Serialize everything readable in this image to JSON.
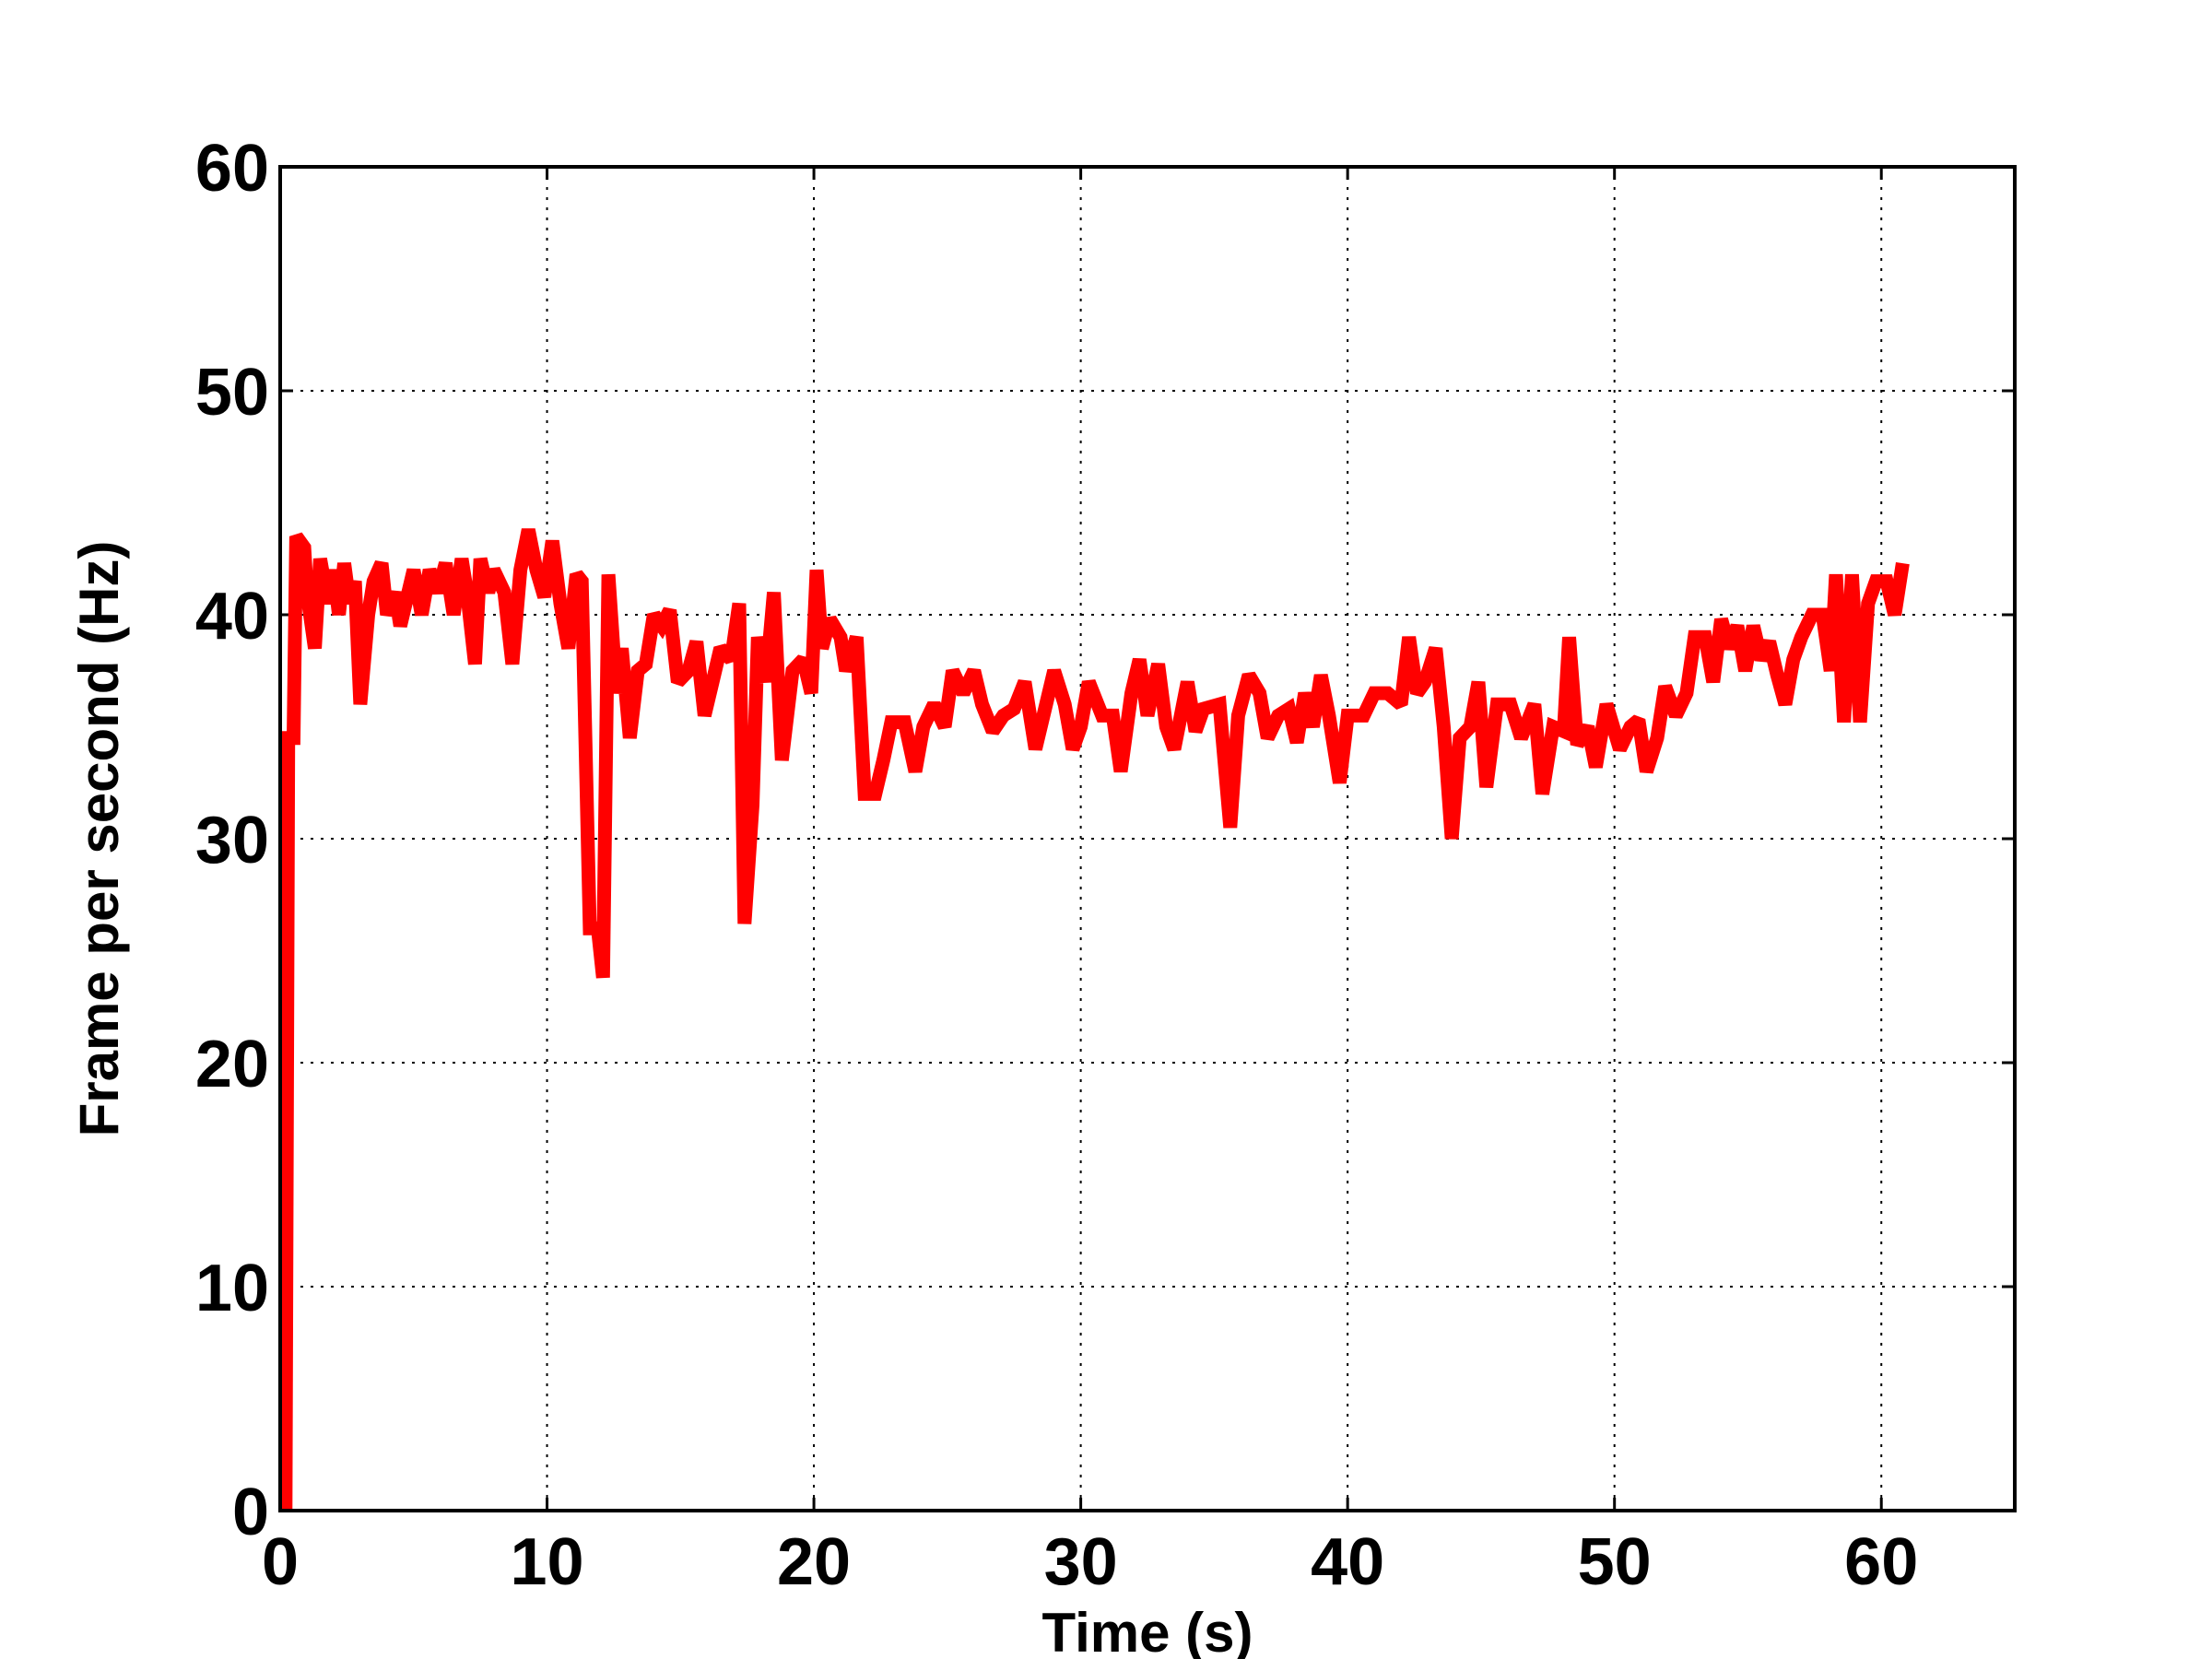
{
  "chart_data": {
    "type": "line",
    "xlabel": "Time (s)",
    "ylabel": "Frame per second (Hz)",
    "xlim": [
      0,
      65
    ],
    "ylim": [
      0,
      60
    ],
    "xticks": [
      0,
      10,
      20,
      30,
      40,
      50,
      60
    ],
    "yticks": [
      0,
      10,
      20,
      30,
      40,
      50,
      60
    ],
    "grid": true,
    "series": [
      {
        "color": "#ff0000",
        "x": [
          0.2,
          0.3,
          0.5,
          0.6,
          0.9,
          1.0,
          1.3,
          1.5,
          1.8,
          2.0,
          2.2,
          2.4,
          2.6,
          2.8,
          3.0,
          3.3,
          3.5,
          3.8,
          4.0,
          4.3,
          4.5,
          4.8,
          5.0,
          5.3,
          5.6,
          5.9,
          6.2,
          6.5,
          6.8,
          7.0,
          7.3,
          7.5,
          7.8,
          8.0,
          8.4,
          8.7,
          9.0,
          9.3,
          9.6,
          9.9,
          10.2,
          10.5,
          10.8,
          11.1,
          11.3,
          11.6,
          11.9,
          12.1,
          12.3,
          12.6,
          12.8,
          13.1,
          13.4,
          13.7,
          14.0,
          14.3,
          14.6,
          14.9,
          15.3,
          15.6,
          15.9,
          16.2,
          16.5,
          16.9,
          17.2,
          17.4,
          17.7,
          17.9,
          18.2,
          18.5,
          18.8,
          19.2,
          19.6,
          19.9,
          20.1,
          20.3,
          20.6,
          21.0,
          21.2,
          21.6,
          21.9,
          22.3,
          22.6,
          22.9,
          23.4,
          23.8,
          24.1,
          24.5,
          24.9,
          25.2,
          25.6,
          26.0,
          26.3,
          26.7,
          27.1,
          27.5,
          27.9,
          28.3,
          28.7,
          29.0,
          29.4,
          29.7,
          30.0,
          30.3,
          30.8,
          31.2,
          31.5,
          31.9,
          32.2,
          32.5,
          32.9,
          33.2,
          33.5,
          34.0,
          34.3,
          34.6,
          35.2,
          35.6,
          35.9,
          36.3,
          36.7,
          37.0,
          37.4,
          37.8,
          38.1,
          38.4,
          38.7,
          39.0,
          39.3,
          39.7,
          40.0,
          40.6,
          41.0,
          41.5,
          42.0,
          42.3,
          42.6,
          42.9,
          43.3,
          43.6,
          43.9,
          44.2,
          44.6,
          44.9,
          45.2,
          45.6,
          46.1,
          46.5,
          47.0,
          47.3,
          47.7,
          48.1,
          48.3,
          48.6,
          49.0,
          49.3,
          49.7,
          50.2,
          50.6,
          50.9,
          51.2,
          51.6,
          51.9,
          52.3,
          52.7,
          53.0,
          53.4,
          53.7,
          54.0,
          54.3,
          54.6,
          54.9,
          55.2,
          55.5,
          55.8,
          56.1,
          56.4,
          56.7,
          57.0,
          57.4,
          57.8,
          58.1,
          58.3,
          58.6,
          58.9,
          59.2,
          59.5,
          59.8,
          60.2,
          60.5,
          60.8
        ],
        "values": [
          0,
          34.5,
          34.5,
          43.5,
          43,
          41,
          38.5,
          42.5,
          40.5,
          42,
          40,
          42.3,
          40.5,
          41.5,
          36,
          40,
          41.5,
          42.3,
          40,
          41,
          39.5,
          41,
          42,
          40,
          42,
          41,
          42.3,
          40,
          42.5,
          41,
          37.8,
          42.5,
          41,
          42,
          41,
          37.8,
          42,
          43.8,
          42,
          40.8,
          43.3,
          40.5,
          38.5,
          41.8,
          41.5,
          26,
          26,
          23.8,
          41.8,
          36.5,
          38.5,
          34.5,
          37.5,
          37.8,
          40,
          39.5,
          40.2,
          37,
          37.5,
          38.8,
          35.5,
          37,
          38.5,
          38,
          40.5,
          26.2,
          31.5,
          39,
          37,
          41,
          33.5,
          37.5,
          38,
          36.5,
          42,
          38.5,
          39.8,
          39,
          37.5,
          39,
          32,
          32,
          33.5,
          35.2,
          35.2,
          33,
          35,
          36,
          35,
          37.5,
          36.5,
          37.5,
          36,
          34.8,
          35.5,
          35.8,
          37,
          34,
          36,
          37.5,
          36,
          34,
          35,
          37,
          35.5,
          35.5,
          33,
          36.5,
          38,
          35.5,
          37.8,
          35,
          34,
          37,
          34.8,
          35.8,
          36,
          30.5,
          35.5,
          37.3,
          36.5,
          34.5,
          35.5,
          35.8,
          34.3,
          36.5,
          35,
          37.3,
          35.5,
          32.5,
          35.5,
          35.5,
          36.5,
          36.5,
          36,
          39,
          36.5,
          37,
          38.5,
          35,
          30,
          34.5,
          35,
          37,
          32.3,
          36,
          36,
          34.5,
          36,
          32,
          35,
          34.8,
          39,
          34.2,
          35,
          33.2,
          36,
          34,
          35,
          35.3,
          33,
          34.5,
          36.8,
          35.5,
          36.5,
          39,
          39,
          37,
          39.8,
          38.5,
          39.5,
          37.5,
          39.5,
          38,
          38.8,
          37.3,
          36,
          38,
          39,
          40,
          40,
          37.5,
          41.8,
          35.2,
          41.8,
          35.2,
          40.5,
          41.5,
          41.5,
          40,
          42.3
        ]
      }
    ]
  }
}
